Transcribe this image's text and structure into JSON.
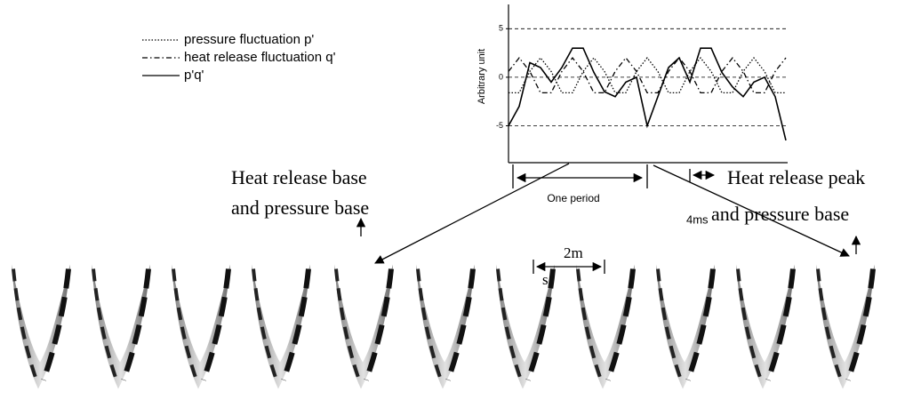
{
  "chart_data": {
    "type": "line",
    "y_label": "Arbitrary unit",
    "x": [
      0,
      1,
      2,
      3,
      4,
      5,
      6,
      7,
      8,
      9,
      10,
      11,
      12,
      13,
      14,
      15,
      16,
      17,
      18,
      19,
      20,
      21,
      22,
      23,
      24,
      25,
      26
    ],
    "xlim": [
      0,
      26
    ],
    "ylim": [
      -8.8,
      7.5
    ],
    "yticks": [
      -5,
      0,
      5
    ],
    "grid": true,
    "series": [
      {
        "name": "pressure fluctuation p'",
        "color": "#000000",
        "dash": "dotted",
        "values": [
          -1.6,
          -1.6,
          0.6,
          2,
          0.6,
          -1.6,
          -1.6,
          0.6,
          2,
          0.6,
          -1.6,
          -1.6,
          0.6,
          2,
          0.6,
          -1.6,
          -1.6,
          0.6,
          2,
          0.6,
          -1.6,
          -1.6,
          0.6,
          2,
          0.6,
          -1.6,
          -1.6
        ]
      },
      {
        "name": "heat release fluctuation q'",
        "color": "#000000",
        "dash": "dashdot",
        "values": [
          0.6,
          2,
          0.6,
          -1.6,
          -1.6,
          0.6,
          2,
          0.6,
          -1.6,
          -1.6,
          0.6,
          2,
          0.6,
          -1.6,
          -1.6,
          0.6,
          2,
          0.6,
          -1.6,
          -1.6,
          0.6,
          2,
          0.6,
          -1.6,
          -1.6,
          0.6,
          2
        ]
      },
      {
        "name": "p'q'",
        "color": "#000000",
        "dash": "solid",
        "values": [
          -5,
          -3,
          1.5,
          1,
          -0.5,
          1,
          3,
          3,
          0.5,
          -1.5,
          -2,
          -0.5,
          0,
          -5,
          -2,
          1,
          2,
          -0.5,
          3,
          3,
          0.5,
          -1,
          -2,
          -0.5,
          0,
          -2,
          -6.5
        ]
      }
    ],
    "annotations": {
      "left_label": [
        "Heat release base",
        "and pressure base"
      ],
      "period": "One period",
      "right_label": [
        "Heat release peak",
        "and pressure base"
      ],
      "four_ms": "4ms",
      "two_ms": [
        "2m",
        "s"
      ]
    }
  }
}
